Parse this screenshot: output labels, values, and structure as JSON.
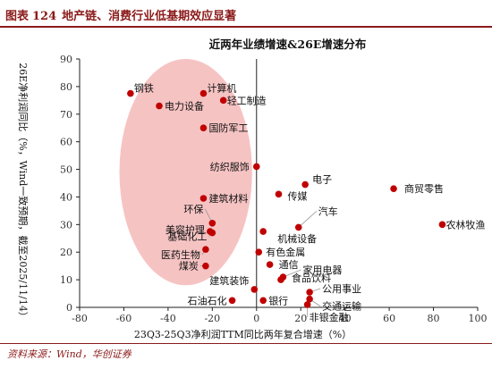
{
  "figure": {
    "label": "图表",
    "number": "124",
    "caption": "地产链、消费行业低基期效应显著"
  },
  "source": "资料来源：Wind，华创证券",
  "colors": {
    "accent": "#8b1a1a",
    "point": "#c00000",
    "highlight_fill": "#f4b8b8",
    "leader": "#999999"
  },
  "chart_data": {
    "type": "scatter",
    "title": "近两年业绩增速&26E增速分布",
    "xlabel": "23Q3-25Q3净利润TTM同比两年复合增速（%）",
    "ylabel": "26E净利润同比（%，Wind一致预期，截至2025/11/14）",
    "xlim": [
      -80,
      100
    ],
    "ylim": [
      0,
      90
    ],
    "xticks": [
      -80,
      -60,
      -40,
      -20,
      0,
      20,
      40,
      60,
      80,
      100
    ],
    "yticks": [
      0,
      10,
      20,
      30,
      40,
      50,
      60,
      70,
      80,
      90
    ],
    "grid": false,
    "highlight_region": {
      "shape": "ellipse",
      "center": [
        -32,
        49
      ],
      "radii": [
        30,
        41
      ]
    },
    "points": [
      {
        "name": "钢铁",
        "x": -57,
        "y": 77.5
      },
      {
        "name": "计算机",
        "x": -24,
        "y": 77.5
      },
      {
        "name": "电力设备",
        "x": -44,
        "y": 73
      },
      {
        "name": "轻工制造",
        "x": -15,
        "y": 75
      },
      {
        "name": "国防军工",
        "x": -24,
        "y": 65
      },
      {
        "name": "纺织服饰",
        "x": 0,
        "y": 51
      },
      {
        "name": "电子",
        "x": 22,
        "y": 44.5
      },
      {
        "name": "商贸零售",
        "x": 62,
        "y": 43
      },
      {
        "name": "建筑材料",
        "x": -24,
        "y": 39.5
      },
      {
        "name": "传媒",
        "x": 10,
        "y": 41
      },
      {
        "name": "环保",
        "x": -20,
        "y": 30.5
      },
      {
        "name": "美容护理",
        "x": -21,
        "y": 27.5
      },
      {
        "name": "汽车",
        "x": 19,
        "y": 29
      },
      {
        "name": "农林牧渔",
        "x": 84,
        "y": 30
      },
      {
        "name": "机械设备",
        "x": 3,
        "y": 27.5
      },
      {
        "name": "基础化工",
        "x": -20,
        "y": 27
      },
      {
        "name": "医药生物",
        "x": -23,
        "y": 21
      },
      {
        "name": "有色金属",
        "x": 1,
        "y": 20
      },
      {
        "name": "煤炭",
        "x": -23,
        "y": 15
      },
      {
        "name": "通信",
        "x": 6,
        "y": 15.5
      },
      {
        "name": "家用电器",
        "x": 12,
        "y": 11
      },
      {
        "name": "食品饮料",
        "x": 11,
        "y": 10
      },
      {
        "name": "建筑装饰",
        "x": -1,
        "y": 6.5
      },
      {
        "name": "石油石化",
        "x": -11,
        "y": 2.5
      },
      {
        "name": "银行",
        "x": 3,
        "y": 2.5
      },
      {
        "name": "公用事业",
        "x": 24,
        "y": 5.5
      },
      {
        "name": "交通运输",
        "x": 24,
        "y": 3
      },
      {
        "name": "非银金融",
        "x": 23,
        "y": 1
      }
    ]
  }
}
